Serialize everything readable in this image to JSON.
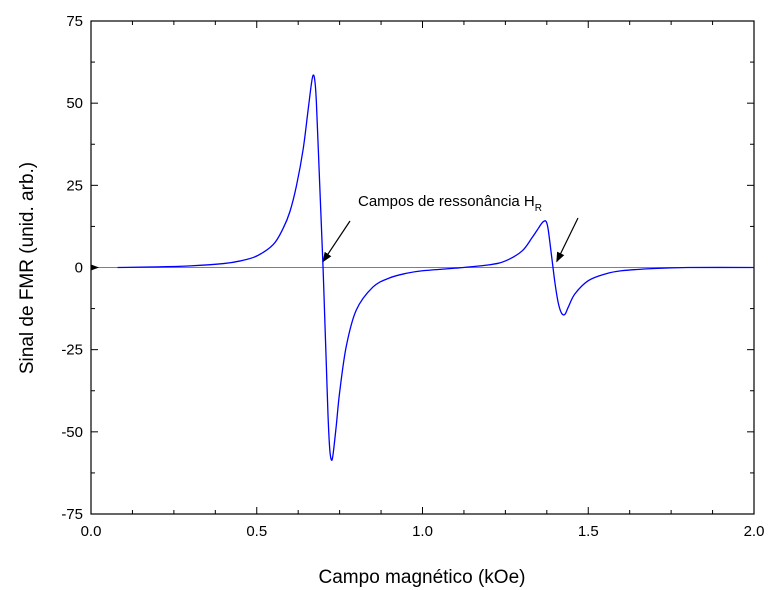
{
  "chart_data": {
    "type": "line",
    "xlabel": "Campo magnético (kOe)",
    "ylabel": "Sinal de FMR (unid. arb.)",
    "xlim": [
      0.0,
      2.0
    ],
    "ylim": [
      -75,
      75
    ],
    "x_ticks": [
      "0.0",
      "0.5",
      "1.0",
      "1.5",
      "2.0"
    ],
    "x_tick_values": [
      0.0,
      0.5,
      1.0,
      1.5,
      2.0
    ],
    "y_ticks": [
      "75",
      "50",
      "25",
      "0",
      "-25",
      "-50",
      "-75"
    ],
    "y_tick_values": [
      75,
      50,
      25,
      0,
      -25,
      -50,
      -75
    ],
    "grid": false,
    "baseline": 0,
    "series": [
      {
        "color": "#0000ff",
        "x": [
          0.08,
          0.2,
          0.3,
          0.4,
          0.45,
          0.5,
          0.55,
          0.58,
          0.6,
          0.62,
          0.64,
          0.655,
          0.665,
          0.67,
          0.675,
          0.68,
          0.69,
          0.7,
          0.705,
          0.71,
          0.715,
          0.72,
          0.725,
          0.73,
          0.74,
          0.75,
          0.77,
          0.8,
          0.85,
          0.9,
          0.95,
          1.0,
          1.1,
          1.2,
          1.25,
          1.3,
          1.33,
          1.35,
          1.36,
          1.37,
          1.375,
          1.38,
          1.39,
          1.4,
          1.41,
          1.42,
          1.43,
          1.44,
          1.46,
          1.5,
          1.55,
          1.6,
          1.7,
          1.8,
          2.0
        ],
        "y": [
          0,
          0.2,
          0.5,
          1.2,
          2,
          3.5,
          7,
          12,
          17,
          25,
          36,
          48,
          56,
          58.5,
          57,
          50,
          25,
          0,
          -15,
          -30,
          -45,
          -55,
          -58.5,
          -57,
          -48,
          -38,
          -24,
          -13,
          -6,
          -3.2,
          -1.8,
          -1,
          -0.2,
          0.8,
          2,
          5,
          9,
          12,
          13.5,
          14.2,
          13.5,
          11,
          3,
          -5,
          -11,
          -14,
          -14.2,
          -12,
          -8,
          -4,
          -2,
          -1,
          -0.3,
          0,
          0
        ]
      }
    ],
    "annotations": [
      {
        "text": "Campos de ressonância H",
        "subscript": "R",
        "targets": [
          [
            0.7,
            0.0
          ],
          [
            1.405,
            0.0
          ]
        ]
      }
    ]
  }
}
